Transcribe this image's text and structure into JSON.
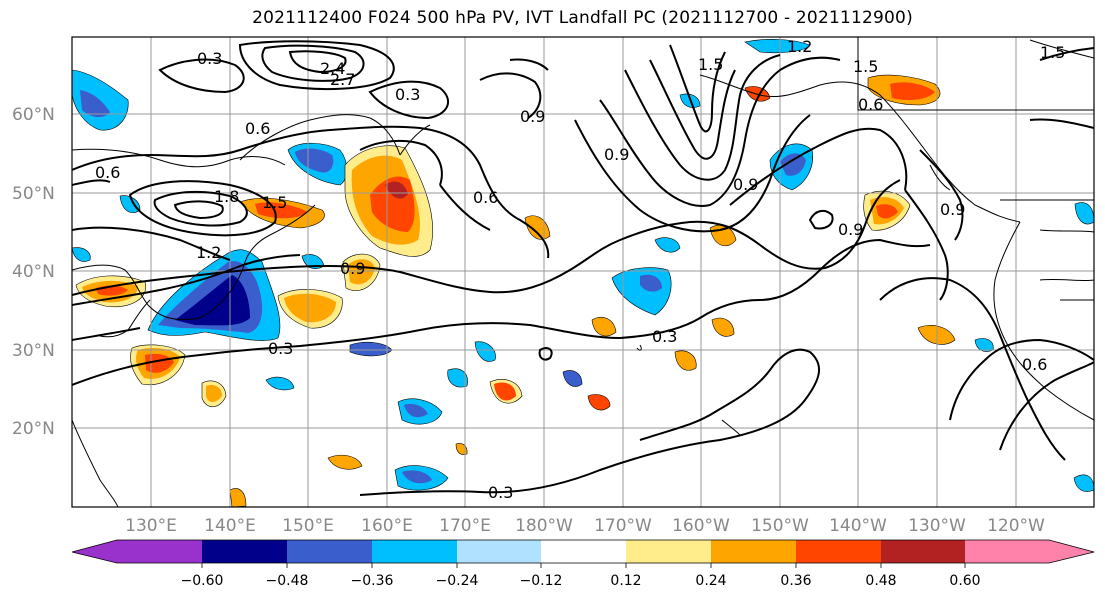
{
  "title": "2021112400 F024 500 hPa PV, IVT Landfall PC (2021112700 - 2021112900)",
  "lat_labels": [
    "20°N",
    "30°N",
    "40°N",
    "50°N",
    "60°N"
  ],
  "lon_labels": [
    "130°E",
    "140°E",
    "150°E",
    "160°E",
    "170°E",
    "180°W",
    "170°W",
    "160°W",
    "150°W",
    "140°W",
    "130°W",
    "120°W"
  ],
  "contour_labels": [
    "0.3",
    "0.3",
    "0.3",
    "0.3",
    "0.6",
    "0.6",
    "0.6",
    "0.6",
    "0.9",
    "0.9",
    "0.9",
    "0.9",
    "0.9",
    "1.2",
    "1.2",
    "1.5",
    "1.5",
    "1.5",
    "1.5",
    "1.8",
    "2.4",
    "2.7",
    "0.3",
    "0.9",
    "0.6"
  ],
  "colorbar": {
    "ticks": [
      "−0.60",
      "−0.48",
      "−0.36",
      "−0.24",
      "−0.12",
      "0.12",
      "0.24",
      "0.36",
      "0.48",
      "0.60"
    ],
    "colors": [
      "#9932cc",
      "#00008b",
      "#3a5fcd",
      "#00bfff",
      "#b0e2ff",
      "#ffffff",
      "#ffec8b",
      "#ffa500",
      "#ff4500",
      "#b22222",
      "#ff82ab"
    ]
  },
  "colors": {
    "frame": "#000000",
    "grid": "#999999",
    "label": "#888888",
    "contour": "#000000"
  }
}
